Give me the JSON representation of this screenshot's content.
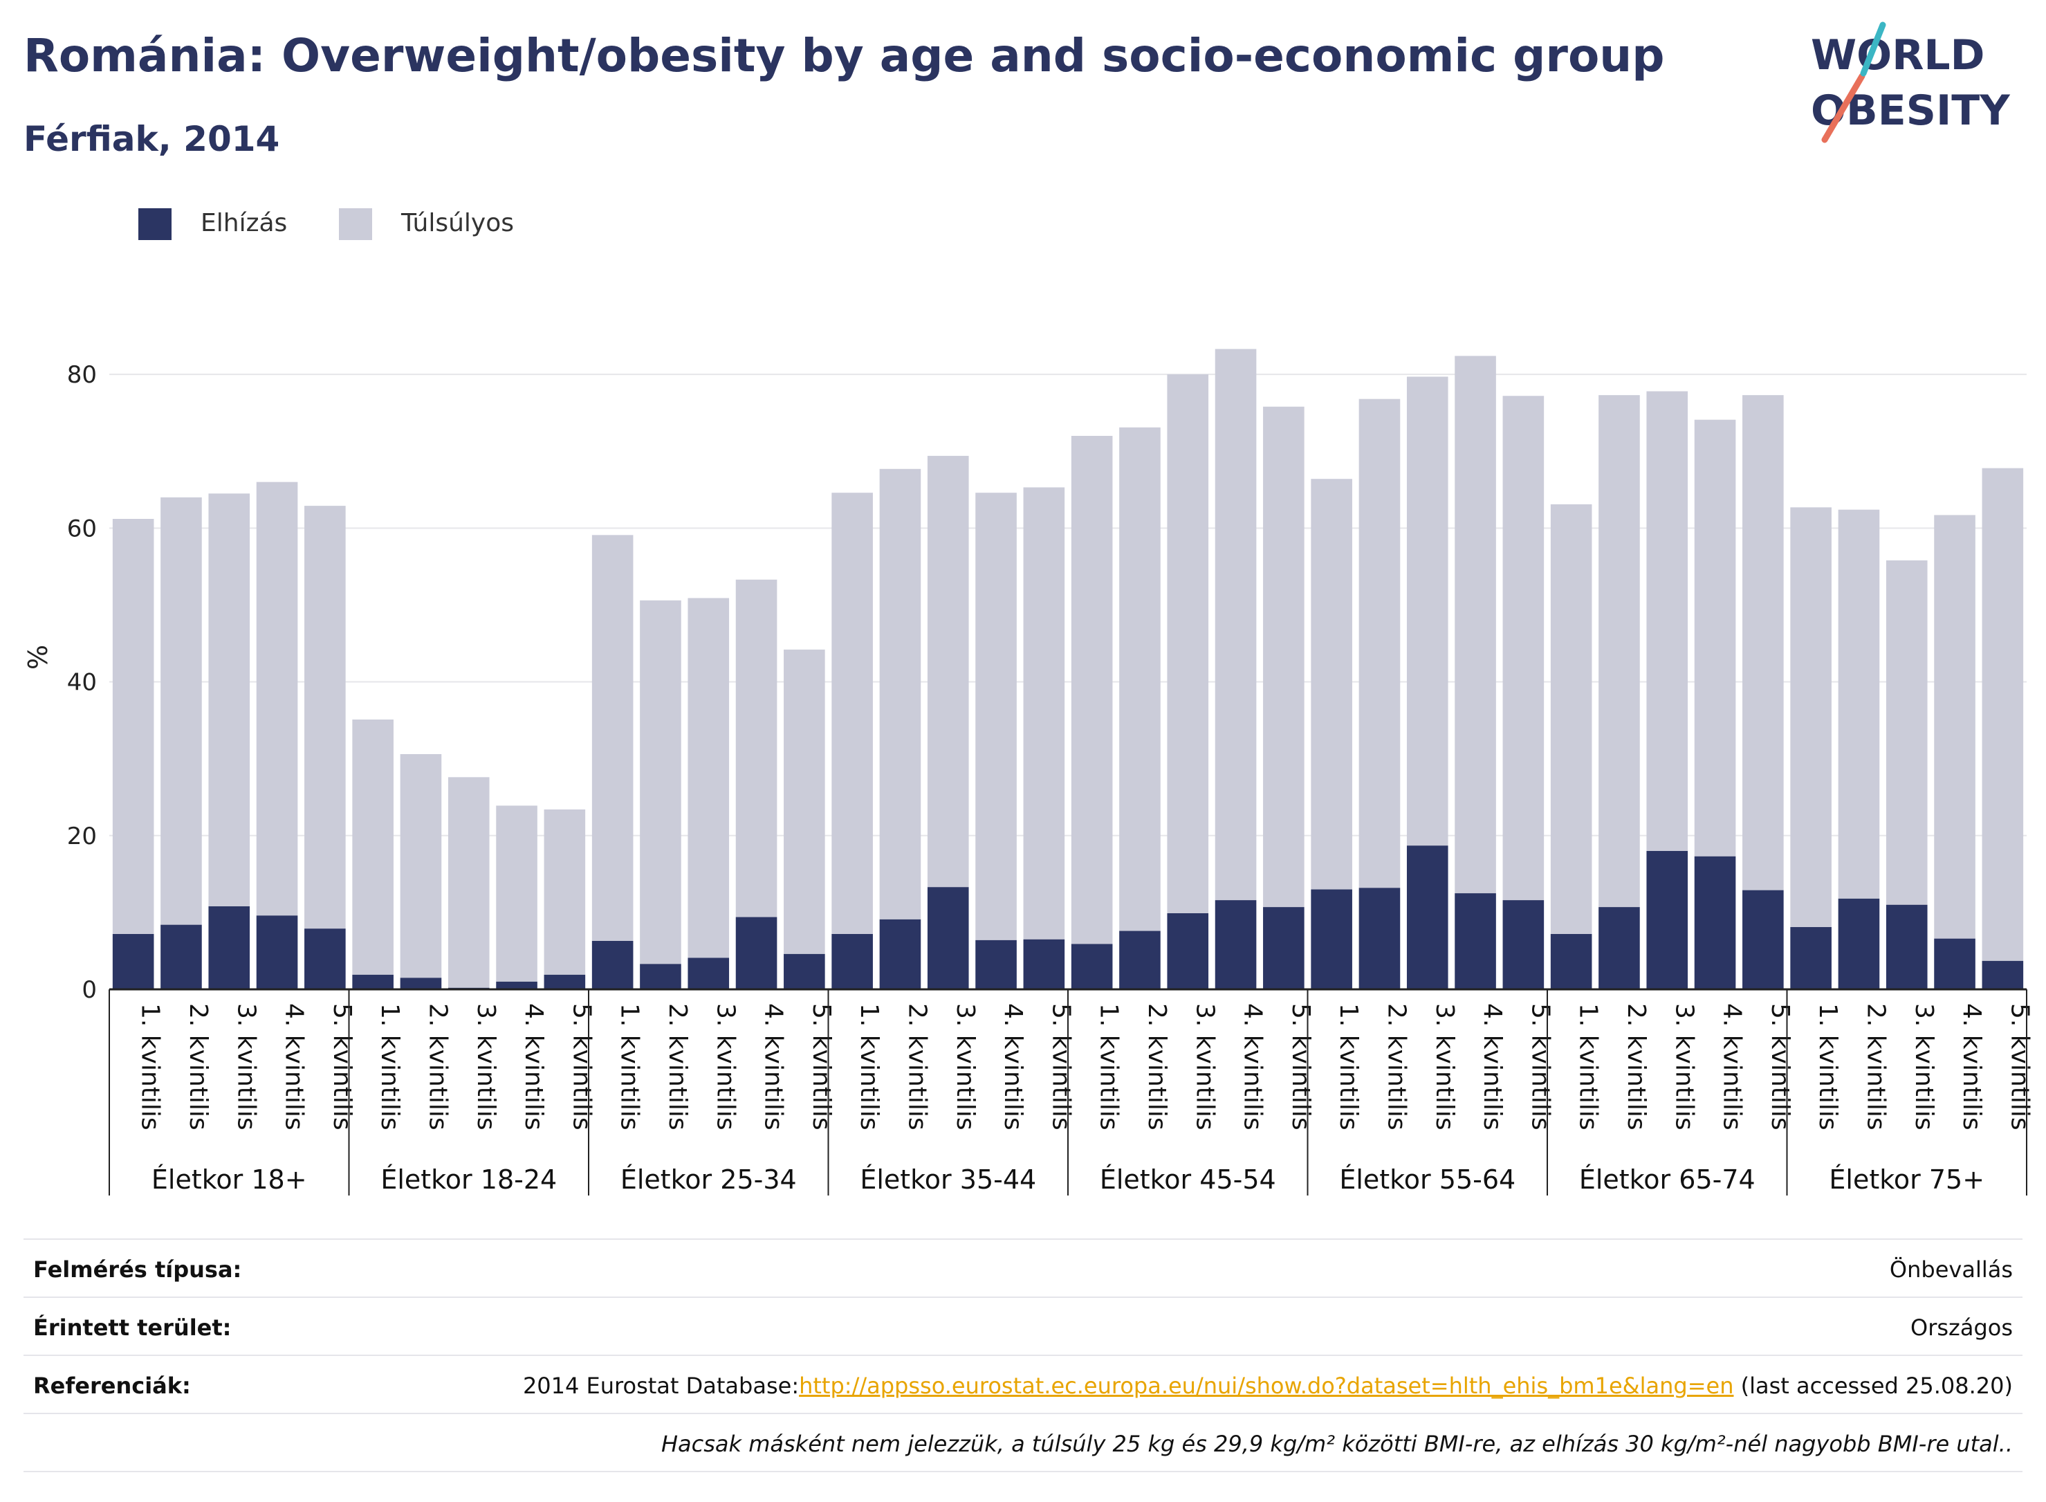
{
  "header": {
    "title": "Románia: Overweight/obesity by age and socio-economic group",
    "subtitle": "Férfiak, 2014"
  },
  "logo": {
    "line1": "WORLD",
    "line2": "OBESITY",
    "colors": [
      "#2b3460",
      "#e8705a",
      "#3bb6c4"
    ]
  },
  "legend": [
    {
      "label": "Elhízás",
      "color": "#2b3563"
    },
    {
      "label": "Túlsúlyos",
      "color": "#cbccd9"
    }
  ],
  "chart_data": {
    "type": "bar",
    "stacked": true,
    "ylabel": "%",
    "ylim": [
      0,
      90
    ],
    "yticks": [
      0,
      20,
      40,
      60,
      80
    ],
    "grid": true,
    "legend_position": "top-left",
    "groups": [
      {
        "label": "Életkor 18+",
        "obesity": [
          7.2,
          8.4,
          10.8,
          9.6,
          7.9
        ],
        "total": [
          61.2,
          64.0,
          64.5,
          66.0,
          62.9
        ]
      },
      {
        "label": "Életkor 18-24",
        "obesity": [
          1.9,
          1.5,
          0.2,
          1.0,
          1.9
        ],
        "total": [
          35.1,
          30.6,
          27.6,
          23.9,
          23.4
        ]
      },
      {
        "label": "Életkor 25-34",
        "obesity": [
          6.3,
          3.3,
          4.1,
          9.4,
          4.6
        ],
        "total": [
          59.1,
          50.6,
          50.9,
          53.3,
          44.2
        ]
      },
      {
        "label": "Életkor 35-44",
        "obesity": [
          7.2,
          9.1,
          13.3,
          6.4,
          6.5
        ],
        "total": [
          64.6,
          67.7,
          69.4,
          64.6,
          65.3
        ]
      },
      {
        "label": "Életkor 45-54",
        "obesity": [
          5.9,
          7.6,
          9.9,
          11.6,
          10.7
        ],
        "total": [
          72.0,
          73.1,
          80.0,
          83.3,
          75.8
        ]
      },
      {
        "label": "Életkor 55-64",
        "obesity": [
          13.0,
          13.2,
          18.7,
          12.5,
          11.6
        ],
        "total": [
          66.4,
          76.8,
          79.7,
          82.4,
          77.2
        ]
      },
      {
        "label": "Életkor 65-74",
        "obesity": [
          7.2,
          10.7,
          18.0,
          17.3,
          12.9
        ],
        "total": [
          63.1,
          77.3,
          77.8,
          74.1,
          77.3
        ]
      },
      {
        "label": "Életkor 75+",
        "obesity": [
          8.1,
          11.8,
          11.0,
          6.6,
          3.7
        ],
        "total": [
          62.7,
          62.4,
          55.8,
          61.7,
          67.8
        ]
      }
    ],
    "categories": [
      "1. kvintilis",
      "2. kvintilis",
      "3. kvintilis",
      "4. kvintilis",
      "5. kvintilis"
    ]
  },
  "footer": {
    "survey_label": "Felmérés típusa:",
    "survey_value": "Önbevallás",
    "area_label": "Érintett terület:",
    "area_value": "Országos",
    "ref_label": "Referenciák:",
    "ref_prefix": "2014 Eurostat Database:",
    "ref_link": "http://appsso.eurostat.ec.europa.eu/nui/show.do?dataset=hlth_ehis_bm1e&lang=en",
    "ref_suffix": " (last accessed 25.08.20)",
    "note": "Hacsak másként nem jelezzük, a túlsúly 25 kg és 29,9 kg/m² közötti BMI-re, az elhízás 30 kg/m²-nél nagyobb BMI-re utal.."
  }
}
